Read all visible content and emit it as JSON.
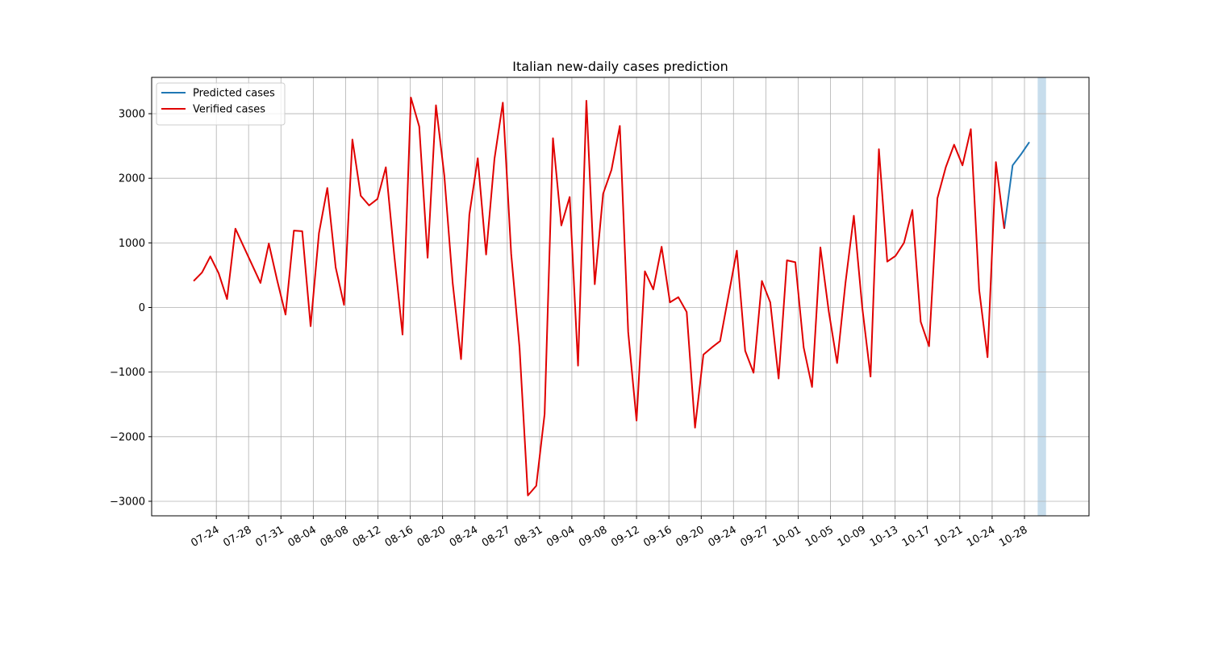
{
  "chart_data": {
    "type": "line",
    "title": "Italian new-daily cases prediction",
    "xlim": [
      -5.02,
      107.14
    ],
    "ylim": [
      -3225,
      3562
    ],
    "xticks": [
      {
        "value": 2.72,
        "label": "07-24"
      },
      {
        "value": 6.58,
        "label": "07-28"
      },
      {
        "value": 10.45,
        "label": "07-31"
      },
      {
        "value": 14.32,
        "label": "08-04"
      },
      {
        "value": 18.19,
        "label": "08-08"
      },
      {
        "value": 22.06,
        "label": "08-12"
      },
      {
        "value": 25.92,
        "label": "08-16"
      },
      {
        "value": 29.79,
        "label": "08-20"
      },
      {
        "value": 33.66,
        "label": "08-24"
      },
      {
        "value": 37.53,
        "label": "08-27"
      },
      {
        "value": 41.4,
        "label": "08-31"
      },
      {
        "value": 45.26,
        "label": "09-04"
      },
      {
        "value": 49.13,
        "label": "09-08"
      },
      {
        "value": 53.0,
        "label": "09-12"
      },
      {
        "value": 56.87,
        "label": "09-16"
      },
      {
        "value": 60.74,
        "label": "09-20"
      },
      {
        "value": 64.6,
        "label": "09-24"
      },
      {
        "value": 68.47,
        "label": "09-27"
      },
      {
        "value": 72.34,
        "label": "10-01"
      },
      {
        "value": 76.21,
        "label": "10-05"
      },
      {
        "value": 80.08,
        "label": "10-09"
      },
      {
        "value": 83.94,
        "label": "10-13"
      },
      {
        "value": 87.81,
        "label": "10-17"
      },
      {
        "value": 91.68,
        "label": "10-21"
      },
      {
        "value": 95.55,
        "label": "10-24"
      },
      {
        "value": 99.42,
        "label": "10-28"
      }
    ],
    "yticks": [
      {
        "value": -3000,
        "label": "−3000"
      },
      {
        "value": -2000,
        "label": "−2000"
      },
      {
        "value": -1000,
        "label": "−1000"
      },
      0,
      1000,
      2000,
      3000
    ],
    "grid": true,
    "legend": "upper left",
    "span": {
      "x": [
        101,
        102
      ],
      "color": "#1f77b4"
    },
    "series": [
      {
        "name": "Predicted cases",
        "color": "#1f77b4",
        "x": [
          97,
          98,
          99,
          100
        ],
        "values": [
          1220,
          2200,
          2370,
          2560
        ]
      },
      {
        "name": "Verified cases",
        "color": "#e00000",
        "x": [
          0,
          1,
          2,
          3,
          4,
          5,
          6,
          7,
          8,
          9,
          10,
          11,
          12,
          13,
          14,
          15,
          16,
          17,
          18,
          19,
          20,
          21,
          22,
          23,
          24,
          25,
          26,
          27,
          28,
          29,
          30,
          31,
          32,
          33,
          34,
          35,
          36,
          37,
          38,
          39,
          40,
          41,
          42,
          43,
          44,
          45,
          46,
          47,
          48,
          49,
          50,
          51,
          52,
          53,
          54,
          55,
          56,
          57,
          58,
          59,
          60,
          61,
          62,
          63,
          64,
          65,
          66,
          67,
          68,
          69,
          70,
          71,
          72,
          73,
          74,
          75,
          76,
          77,
          78,
          79,
          80,
          81,
          82,
          83,
          84,
          85,
          86,
          87,
          88,
          89,
          90,
          91,
          92,
          93,
          94,
          95,
          96,
          97
        ],
        "values": [
          410,
          540,
          790,
          530,
          130,
          1220,
          940,
          660,
          380,
          990,
          420,
          -110,
          1190,
          1180,
          -290,
          1150,
          1850,
          620,
          40,
          2600,
          1730,
          1580,
          1680,
          2170,
          820,
          -420,
          3250,
          2800,
          770,
          3130,
          2040,
          380,
          -800,
          1440,
          2310,
          820,
          2300,
          3170,
          830,
          -620,
          -2910,
          -2760,
          -1650,
          2620,
          1270,
          1710,
          -900,
          3200,
          360,
          1760,
          2130,
          2810,
          -380,
          -1750,
          560,
          280,
          940,
          80,
          160,
          -70,
          -1860,
          -730,
          -620,
          -520,
          180,
          880,
          -670,
          -1010,
          410,
          80,
          -1100,
          730,
          700,
          -620,
          -1230,
          930,
          -60,
          -860,
          380,
          1420,
          10,
          -1070,
          2450,
          710,
          800,
          1000,
          1510,
          -220,
          -600,
          1690,
          2170,
          2520,
          2200,
          2760,
          270,
          -770,
          2250,
          1220
        ]
      }
    ]
  }
}
